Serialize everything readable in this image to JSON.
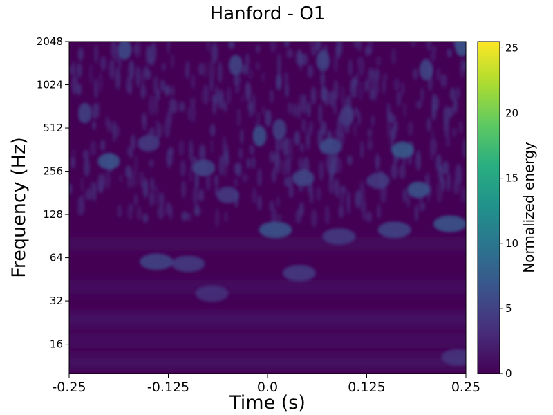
{
  "chart_data": {
    "type": "heatmap",
    "title": "Hanford - O1",
    "xlabel": "Time (s)",
    "ylabel": "Frequency (Hz)",
    "x_range": [
      -0.25,
      0.25
    ],
    "x_ticks": [
      -0.25,
      -0.125,
      0.0,
      0.125,
      0.25
    ],
    "x_tick_labels": [
      "-0.25",
      "-0.125",
      "0.0",
      "0.125",
      "0.25"
    ],
    "y_scale": "log2",
    "y_range": [
      10,
      2048
    ],
    "y_ticks": [
      16,
      32,
      64,
      128,
      256,
      512,
      1024,
      2048
    ],
    "y_tick_labels": [
      "16",
      "32",
      "64",
      "128",
      "256",
      "512",
      "1024",
      "2048"
    ],
    "colormap": "viridis",
    "colorbar": {
      "label": "Normalized energy",
      "range": [
        0,
        25.5
      ],
      "ticks": [
        0,
        5,
        10,
        15,
        20,
        25
      ],
      "tick_labels": [
        "0",
        "5",
        "10",
        "15",
        "20",
        "25"
      ]
    },
    "blobs": [
      {
        "t": -0.14,
        "f": 60,
        "energy": 5.5
      },
      {
        "t": -0.1,
        "f": 58,
        "energy": 4.5
      },
      {
        "t": -0.07,
        "f": 36,
        "energy": 3.5
      },
      {
        "t": 0.01,
        "f": 100,
        "energy": 7.0
      },
      {
        "t": 0.04,
        "f": 50,
        "energy": 4.5
      },
      {
        "t": 0.09,
        "f": 90,
        "energy": 4.5
      },
      {
        "t": 0.16,
        "f": 100,
        "energy": 5.5
      },
      {
        "t": 0.23,
        "f": 110,
        "energy": 7.0
      },
      {
        "t": 0.19,
        "f": 190,
        "energy": 7.0
      },
      {
        "t": -0.2,
        "f": 300,
        "energy": 7.0
      },
      {
        "t": -0.08,
        "f": 270,
        "energy": 5.5
      },
      {
        "t": 0.045,
        "f": 230,
        "energy": 5.5
      },
      {
        "t": -0.05,
        "f": 175,
        "energy": 4.5
      },
      {
        "t": 0.14,
        "f": 220,
        "energy": 4.5
      },
      {
        "t": 0.08,
        "f": 380,
        "energy": 6.0
      },
      {
        "t": 0.17,
        "f": 360,
        "energy": 7.5
      },
      {
        "t": -0.01,
        "f": 450,
        "energy": 6.5
      },
      {
        "t": 0.015,
        "f": 500,
        "energy": 5.0
      },
      {
        "t": -0.15,
        "f": 400,
        "energy": 4.5
      },
      {
        "t": -0.23,
        "f": 650,
        "energy": 5.0
      },
      {
        "t": 0.1,
        "f": 620,
        "energy": 4.5
      },
      {
        "t": 0.24,
        "f": 13,
        "energy": 4.0
      },
      {
        "t": -0.04,
        "f": 1400,
        "energy": 5.5
      },
      {
        "t": 0.07,
        "f": 1500,
        "energy": 5.0
      },
      {
        "t": 0.2,
        "f": 1300,
        "energy": 5.5
      },
      {
        "t": -0.18,
        "f": 1800,
        "energy": 6.0
      },
      {
        "t": 0.245,
        "f": 1900,
        "energy": 7.0
      }
    ]
  }
}
